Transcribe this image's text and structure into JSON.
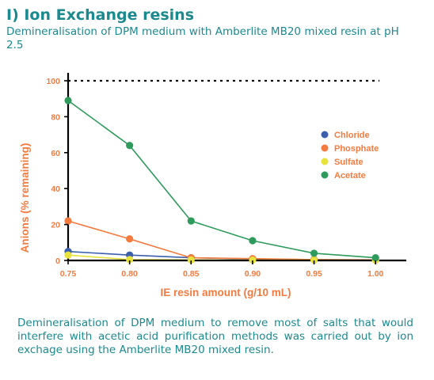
{
  "header": {
    "title": "I) Ion Exchange resins",
    "subtitle": "Demineralisation of DPM medium with Amberlite MB20 mixed resin at pH 2.5"
  },
  "footer": {
    "text": "Demineralisation of DPM medium to remove most of salts that would interfere with acetic acid purification methods was carried out by ion exchage using the Amberlite MB20 mixed resin."
  },
  "chart_data": {
    "type": "line",
    "title": "",
    "xlabel": "IE resin amount (g/10 mL)",
    "ylabel": "Anions (% remaining)",
    "x": [
      0.75,
      0.8,
      0.85,
      0.9,
      0.95,
      1.0
    ],
    "x_tick_labels": [
      "0.75",
      "0.80",
      "0.85",
      "0.90",
      "0.95",
      "1.00"
    ],
    "y_ticks": [
      0,
      20,
      40,
      60,
      80,
      100
    ],
    "xlim": [
      0.75,
      1.025
    ],
    "ylim": [
      0,
      100
    ],
    "reference_line": {
      "y": 100,
      "style": "dotted"
    },
    "legend_position": "right",
    "series": [
      {
        "name": "Chloride",
        "color": "#3b5fad",
        "values": [
          5,
          3,
          1.5,
          0.8,
          0.5,
          0.3
        ]
      },
      {
        "name": "Phosphate",
        "color": "#f47b3f",
        "values": [
          22,
          12,
          1.5,
          1,
          0.5,
          0.3
        ]
      },
      {
        "name": "Sulfate",
        "color": "#e8e33c",
        "values": [
          3,
          0.5,
          0.3,
          0.2,
          0.2,
          0.1
        ]
      },
      {
        "name": "Acetate",
        "color": "#2e9a5c",
        "values": [
          89,
          64,
          22,
          11,
          4,
          1.5
        ]
      }
    ]
  }
}
